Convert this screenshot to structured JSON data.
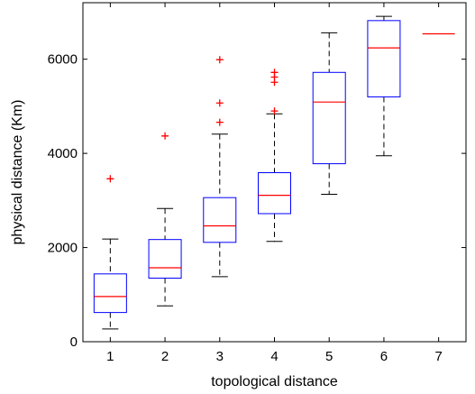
{
  "chart_data": {
    "type": "box",
    "title": "",
    "xlabel": "topological distance",
    "ylabel": "physical distance (Km)",
    "xlim": [
      0.5,
      7.5
    ],
    "ylim": [
      0,
      7200
    ],
    "categories": [
      "1",
      "2",
      "3",
      "4",
      "5",
      "6",
      "7"
    ],
    "y_ticks": [
      {
        "value": 0,
        "label": "0"
      },
      {
        "value": 2000,
        "label": "2000"
      },
      {
        "value": 4000,
        "label": "4000"
      },
      {
        "value": 6000,
        "label": "6000"
      }
    ],
    "grid": false,
    "colors": {
      "box": "#0000ff",
      "median": "#ff0000",
      "whisker": "#000000",
      "outlier": "#ff0000"
    },
    "boxes": [
      {
        "x": 1,
        "whisker_low": 270,
        "q1": 620,
        "median": 960,
        "q3": 1440,
        "whisker_high": 2180,
        "outliers": [
          3460
        ]
      },
      {
        "x": 2,
        "whisker_low": 760,
        "q1": 1350,
        "median": 1570,
        "q3": 2170,
        "whisker_high": 2830,
        "outliers": [
          4370
        ]
      },
      {
        "x": 3,
        "whisker_low": 1380,
        "q1": 2110,
        "median": 2460,
        "q3": 3060,
        "whisker_high": 4410,
        "outliers": [
          4660,
          5070,
          5990
        ]
      },
      {
        "x": 4,
        "whisker_low": 2130,
        "q1": 2720,
        "median": 3110,
        "q3": 3590,
        "whisker_high": 4840,
        "outliers": [
          4900,
          5510,
          5620,
          5720
        ]
      },
      {
        "x": 5,
        "whisker_low": 3130,
        "q1": 3780,
        "median": 5090,
        "q3": 5720,
        "whisker_high": 6560,
        "outliers": []
      },
      {
        "x": 6,
        "whisker_low": 3950,
        "q1": 5200,
        "median": 6240,
        "q3": 6820,
        "whisker_high": 6910,
        "outliers": []
      },
      {
        "x": 7,
        "whisker_low": 6540,
        "q1": 6540,
        "median": 6540,
        "q3": 6540,
        "whisker_high": 6540,
        "outliers": []
      }
    ]
  }
}
